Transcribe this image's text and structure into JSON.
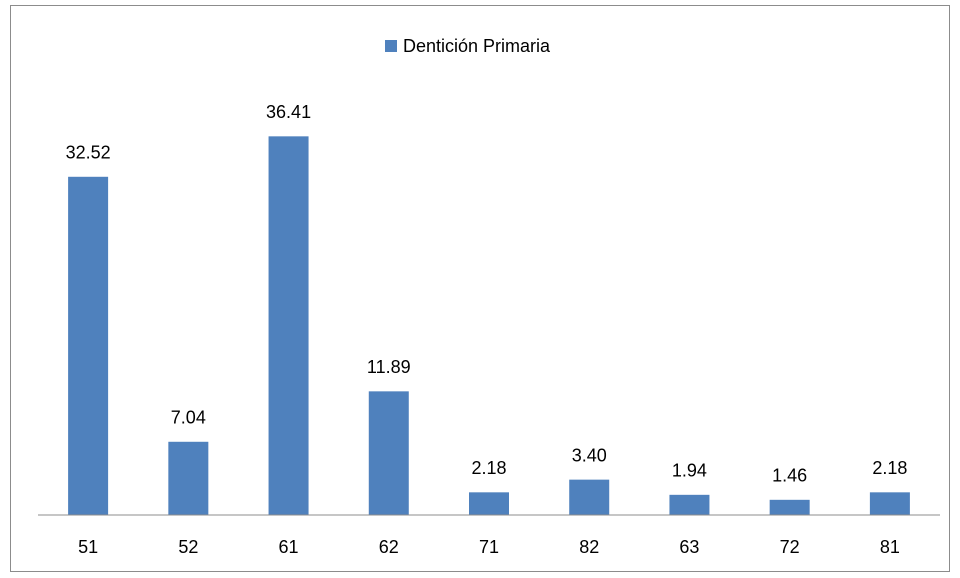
{
  "chart_data": {
    "type": "bar",
    "categories": [
      "51",
      "52",
      "61",
      "62",
      "71",
      "82",
      "63",
      "72",
      "81"
    ],
    "series": [
      {
        "name": "Dentición Primaria",
        "color": "#4f81bd",
        "values": [
          32.52,
          7.04,
          36.41,
          11.89,
          2.18,
          3.4,
          1.94,
          1.46,
          2.18
        ],
        "value_labels": [
          "32.52",
          "7.04",
          "36.41",
          "11.89",
          "2.18",
          "3.40",
          "1.94",
          "1.46",
          "2.18"
        ]
      }
    ],
    "ylim": [
      0,
      40
    ],
    "legend": "top"
  }
}
